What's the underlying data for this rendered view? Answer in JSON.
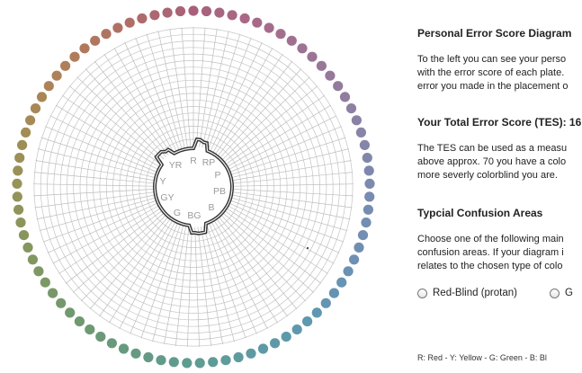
{
  "plot": {
    "labels": [
      "R",
      "RP",
      "P",
      "PB",
      "B",
      "BG",
      "G",
      "GY",
      "Y",
      "YR"
    ],
    "cap_colors": [
      "#a8607a",
      "#a86a8a",
      "#9a7597",
      "#8a82a5",
      "#7a8aaf",
      "#6f8fb4",
      "#5f97b2",
      "#5e9aa5",
      "#5e9c92",
      "#67997f",
      "#72996e",
      "#82975f",
      "#959358",
      "#a68a55",
      "#b07e5a",
      "#b06f66",
      "#a8607a"
    ]
  },
  "panel": {
    "title": "Personal Error Score Diagram",
    "intro_lines": [
      "To the left you can see your perso",
      "with the error score of each plate.",
      "error you made in the placement o"
    ],
    "tes_heading": "Your Total Error Score (TES):",
    "tes_value": "16",
    "tes_lines": [
      "The TES can be used as a measu",
      "above approx. 70 you have a colo",
      "more severly colorblind you are."
    ],
    "confusion_heading": "Typcial Confusion Areas",
    "confusion_lines": [
      "Choose one of the following main",
      "confusion areas. If your diagram i",
      "relates to the chosen type of colo"
    ],
    "radio_red": "Red-Blind (protan)",
    "radio_green": "G",
    "legend": "R: Red  -  Y: Yellow  -  G: Green  -  B: Bl"
  }
}
